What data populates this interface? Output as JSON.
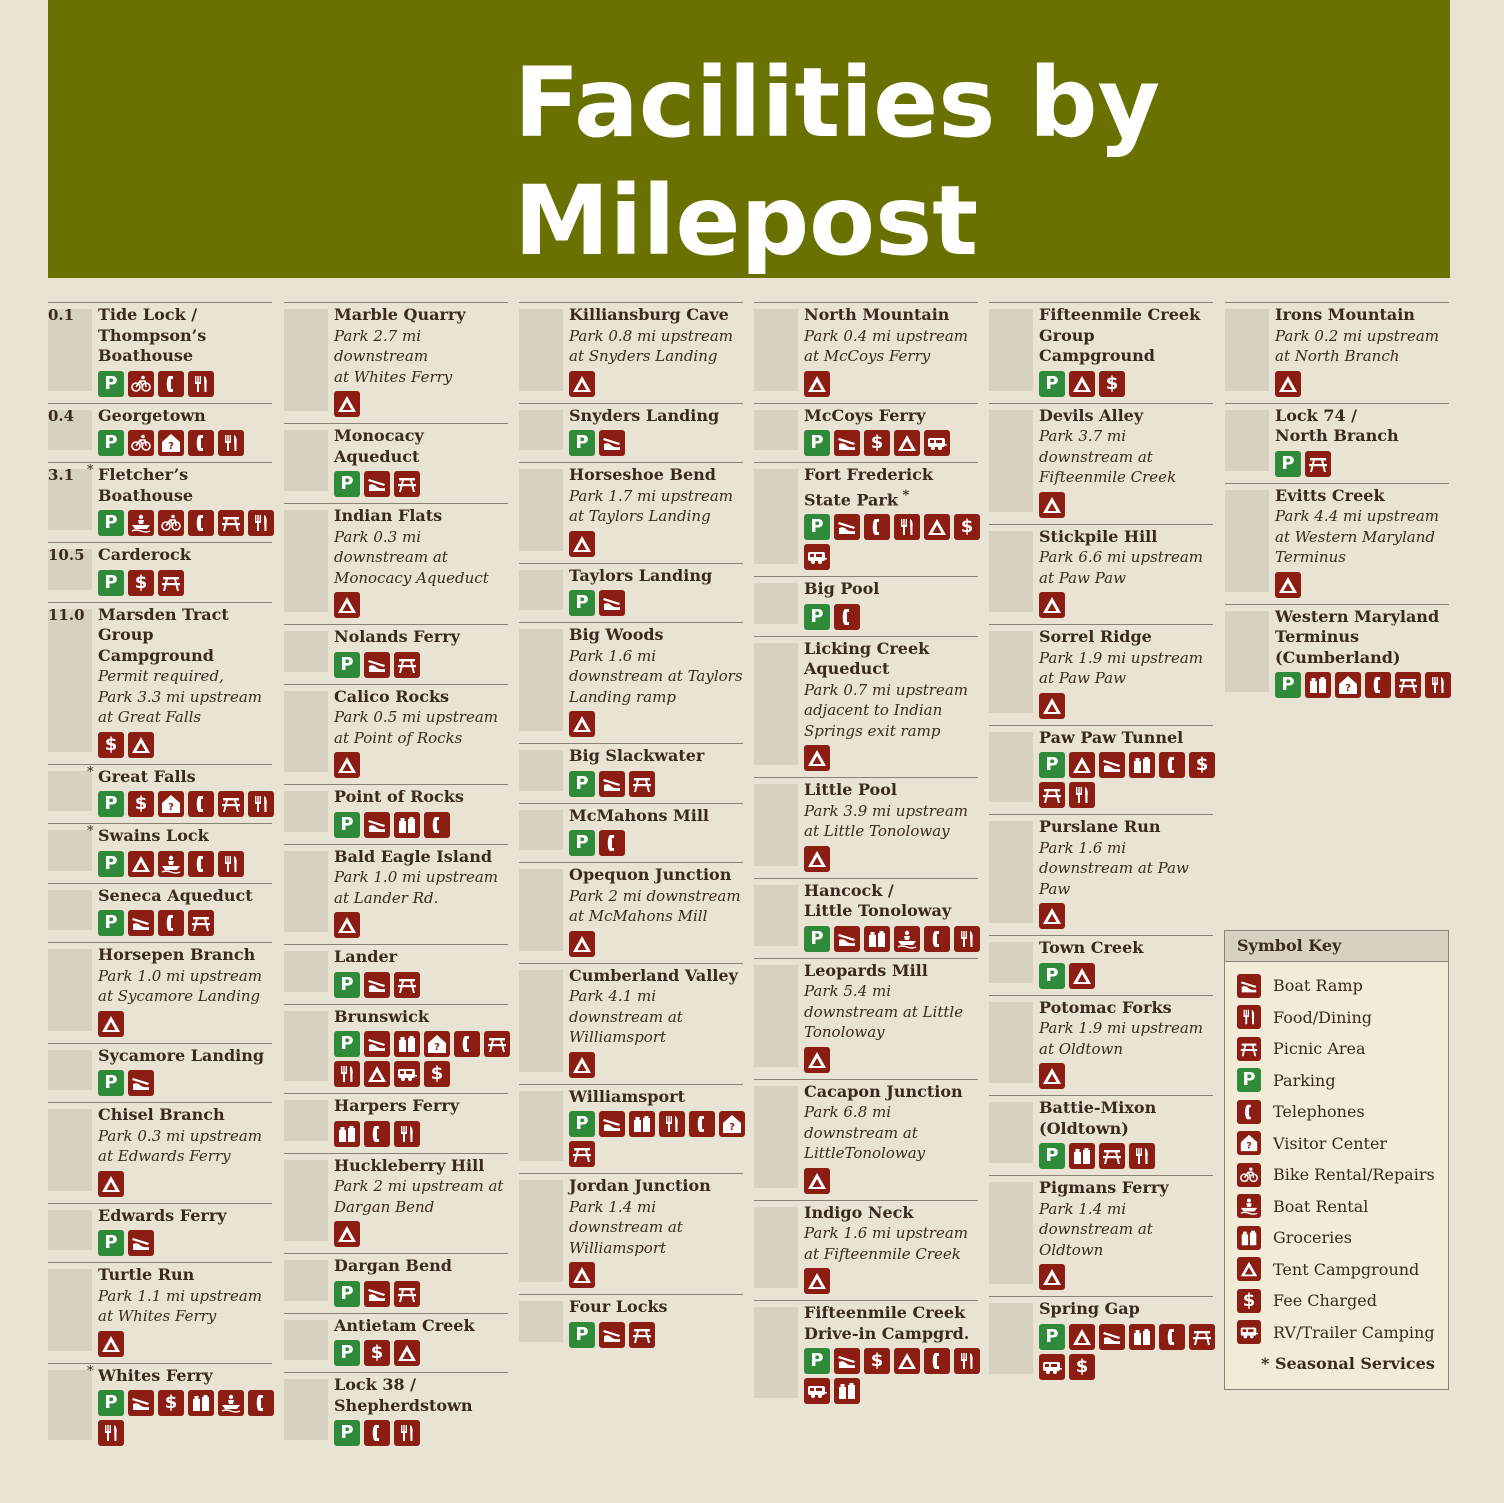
{
  "title": "Facilities by Milepost",
  "title_lines": [
    "Facilities by",
    "Milepost"
  ],
  "colors": {
    "banner": "#697100",
    "background": "#e8e3d3",
    "icon_brown": "#8b1d12",
    "icon_green": "#2f8a3a"
  },
  "columns": [
    [
      {
        "mile": "0.1",
        "name": "Tide Lock /\nThompson’s\nBoathouse",
        "icons": [
          "parking",
          "bike-rental",
          "telephone",
          "food"
        ]
      },
      {
        "mile": "0.4",
        "name": "Georgetown",
        "icons": [
          "parking",
          "bike-rental",
          "visitor-center",
          "telephone",
          "food"
        ]
      },
      {
        "mile": "3.1",
        "seasonal": true,
        "name": "Fletcher’s Boathouse",
        "icons": [
          "parking",
          "boat-rental",
          "bike-rental",
          "telephone",
          "picnic",
          "food"
        ]
      },
      {
        "mile": "10.5",
        "name": "Carderock",
        "icons": [
          "parking",
          "fee",
          "picnic"
        ]
      },
      {
        "mile": "11.0",
        "name": "Marsden Tract\nGroup Campground",
        "note": "Permit required,\nPark 3.3 mi upstream\nat Great Falls",
        "icons": [
          "fee",
          "tent"
        ]
      },
      {
        "seasonal": true,
        "name": "Great Falls",
        "icons": [
          "parking",
          "fee",
          "visitor-center",
          "telephone",
          "picnic",
          "food"
        ]
      },
      {
        "seasonal": true,
        "name": "Swains Lock",
        "icons": [
          "parking",
          "tent",
          "boat-rental",
          "telephone",
          "food"
        ]
      },
      {
        "name": "Seneca Aqueduct",
        "icons": [
          "parking",
          "boat-ramp",
          "telephone",
          "picnic"
        ]
      },
      {
        "name": "Horsepen Branch",
        "note": "Park 1.0 mi upstream\nat Sycamore Landing",
        "icons": [
          "tent"
        ]
      },
      {
        "name": "Sycamore Landing",
        "icons": [
          "parking",
          "boat-ramp"
        ]
      },
      {
        "name": "Chisel Branch",
        "note": "Park 0.3 mi upstream\nat Edwards Ferry",
        "icons": [
          "tent"
        ]
      },
      {
        "name": "Edwards Ferry",
        "icons": [
          "parking",
          "boat-ramp"
        ]
      },
      {
        "name": "Turtle Run",
        "note": "Park 1.1 mi upstream\nat Whites Ferry",
        "icons": [
          "tent"
        ]
      },
      {
        "seasonal": true,
        "name": "Whites Ferry",
        "icons": [
          "parking",
          "boat-ramp",
          "fee",
          "groceries",
          "boat-rental",
          "telephone",
          "food"
        ]
      }
    ],
    [
      {
        "name": " Marble Quarry",
        "note": "Park 2.7 mi\ndownstream\nat Whites Ferry",
        "icons": [
          "tent"
        ]
      },
      {
        "name": "Monocacy Aqueduct",
        "icons": [
          "parking",
          "boat-ramp",
          "picnic"
        ]
      },
      {
        "name": "Indian Flats",
        "note": "Park 0.3 mi\ndownstream at\nMonocacy Aqueduct",
        "icons": [
          "tent"
        ]
      },
      {
        "name": "Nolands Ferry",
        "icons": [
          "parking",
          "boat-ramp",
          "picnic"
        ]
      },
      {
        "name": "Calico Rocks",
        "note": "Park 0.5 mi upstream\nat Point of Rocks",
        "icons": [
          "tent"
        ]
      },
      {
        "name": "Point of Rocks",
        "icons": [
          "parking",
          "boat-ramp",
          "groceries",
          "telephone"
        ]
      },
      {
        "name": "Bald Eagle Island",
        "note": "Park 1.0 mi upstream\nat Lander Rd.",
        "icons": [
          "tent"
        ]
      },
      {
        "name": "Lander",
        "icons": [
          "parking",
          "boat-ramp",
          "picnic"
        ]
      },
      {
        "name": "Brunswick",
        "icons": [
          "parking",
          "boat-ramp",
          "groceries",
          "visitor-center",
          "telephone",
          "picnic",
          "food",
          "tent",
          "rv",
          "fee"
        ]
      },
      {
        "name": "Harpers Ferry",
        "icons": [
          "groceries",
          "telephone",
          "food"
        ]
      },
      {
        "name": "Huckleberry Hill",
        "note": "Park 2 mi upstream at\nDargan Bend",
        "icons": [
          "tent"
        ]
      },
      {
        "name": "Dargan Bend",
        "icons": [
          "parking",
          "boat-ramp",
          "picnic"
        ]
      },
      {
        "name": "Antietam Creek",
        "icons": [
          "parking",
          "fee",
          "tent"
        ]
      },
      {
        "name": "Lock 38 /\nShepherdstown",
        "icons": [
          "parking",
          "telephone",
          "food"
        ]
      }
    ],
    [
      {
        "name": "Killiansburg Cave",
        "note": "Park 0.8 mi upstream\nat Snyders Landing",
        "icons": [
          "tent"
        ]
      },
      {
        "name": "Snyders Landing",
        "icons": [
          "parking",
          "boat-ramp"
        ]
      },
      {
        "name": "Horseshoe Bend",
        "note": "Park 1.7 mi upstream\nat Taylors Landing",
        "icons": [
          "tent"
        ]
      },
      {
        "name": "Taylors Landing",
        "icons": [
          "parking",
          "boat-ramp"
        ]
      },
      {
        "name": "Big Woods",
        "note": "Park 1.6 mi\ndownstream at Taylors\nLanding ramp",
        "icons": [
          "tent"
        ]
      },
      {
        "name": "Big Slackwater",
        "icons": [
          "parking",
          "boat-ramp",
          "picnic"
        ]
      },
      {
        "name": "McMahons Mill",
        "icons": [
          "parking",
          "telephone"
        ]
      },
      {
        "name": "Opequon Junction",
        "note": "Park 2 mi downstream\nat McMahons Mill",
        "icons": [
          "tent"
        ]
      },
      {
        "name": "Cumberland Valley",
        "note": "Park 4.1 mi\ndownstream at\nWilliamsport",
        "icons": [
          "tent"
        ]
      },
      {
        "name": "Williamsport",
        "icons": [
          "parking",
          "boat-ramp",
          "groceries",
          "food",
          "telephone",
          "visitor-center",
          "picnic"
        ]
      },
      {
        "name": "Jordan Junction",
        "note": "Park 1.4 mi\ndownstream at\nWilliamsport",
        "icons": [
          "tent"
        ]
      },
      {
        "name": "Four Locks",
        "icons": [
          "parking",
          "boat-ramp",
          "picnic"
        ]
      }
    ],
    [
      {
        "name": "North Mountain",
        "note": "Park 0.4 mi upstream\nat McCoys Ferry",
        "icons": [
          "tent"
        ]
      },
      {
        "name": "McCoys Ferry",
        "icons": [
          "parking",
          "boat-ramp",
          "fee",
          "tent",
          "rv"
        ]
      },
      {
        "name": "Fort Frederick\nState Park",
        "seasonal_inline": true,
        "icons": [
          "parking",
          "boat-ramp",
          "telephone",
          "food",
          "tent",
          "fee",
          "rv"
        ]
      },
      {
        "name": "Big Pool",
        "icons": [
          "parking",
          "telephone"
        ]
      },
      {
        "name": "Licking Creek\nAqueduct",
        "note": "Park 0.7 mi upstream\nadjacent to Indian\nSprings exit ramp",
        "icons": [
          "tent"
        ]
      },
      {
        "name": "Little Pool",
        "note": "Park 3.9 mi upstream\nat Little Tonoloway",
        "icons": [
          "tent"
        ]
      },
      {
        "name": "Hancock /\nLittle Tonoloway",
        "icons": [
          "parking",
          "boat-ramp",
          "groceries",
          "boat-rental",
          "telephone",
          "food"
        ]
      },
      {
        "name": "Leopards Mill",
        "note": "Park 5.4 mi\ndownstream at Little\nTonoloway",
        "icons": [
          "tent"
        ]
      },
      {
        "name": "Cacapon Junction",
        "note": "Park 6.8 mi\ndownstream at\nLittleTonoloway",
        "icons": [
          "tent"
        ]
      },
      {
        "name": "Indigo Neck",
        "note": "Park 1.6 mi upstream\nat Fifteenmile Creek",
        "icons": [
          "tent"
        ]
      },
      {
        "name": "Fifteenmile Creek\nDrive-in Campgrd.",
        "icons": [
          "parking",
          "boat-ramp",
          "fee",
          "tent",
          "telephone",
          "food",
          "rv",
          "groceries"
        ]
      }
    ],
    [
      {
        "name": "Fifteenmile Creek\nGroup Campground",
        "icons": [
          "parking",
          "tent",
          "fee"
        ]
      },
      {
        "name": "Devils Alley",
        "note": "Park 3.7 mi\ndownstream at\nFifteenmile Creek",
        "icons": [
          "tent"
        ]
      },
      {
        "name": "Stickpile Hill",
        "note": "Park 6.6 mi upstream\nat Paw Paw",
        "icons": [
          "tent"
        ]
      },
      {
        "name": "Sorrel Ridge",
        "note": "Park 1.9 mi upstream\nat Paw Paw",
        "icons": [
          "tent"
        ]
      },
      {
        "name": "Paw Paw Tunnel",
        "icons": [
          "parking",
          "tent",
          "boat-ramp",
          "groceries",
          "telephone",
          "fee",
          "picnic",
          "food"
        ]
      },
      {
        "name": "Purslane Run",
        "note": "Park 1.6 mi\ndownstream at Paw\nPaw",
        "icons": [
          "tent"
        ]
      },
      {
        "name": "Town Creek",
        "icons": [
          "parking",
          "tent"
        ]
      },
      {
        "name": "Potomac Forks",
        "note": "Park 1.9 mi upstream\nat Oldtown",
        "icons": [
          "tent"
        ]
      },
      {
        "name": "Battie-Mixon\n(Oldtown)",
        "icons": [
          "parking",
          "groceries",
          "picnic",
          "food"
        ]
      },
      {
        "name": "Pigmans Ferry",
        "note": "Park 1.4 mi\ndownstream at\nOldtown",
        "icons": [
          "tent"
        ]
      },
      {
        "name": "Spring Gap",
        "icons": [
          "parking",
          "tent",
          "boat-ramp",
          "groceries",
          "telephone",
          "picnic",
          "rv",
          "fee"
        ]
      }
    ],
    [
      {
        "name": "Irons Mountain",
        "note": "Park 0.2 mi upstream\nat North Branch",
        "icons": [
          "tent"
        ]
      },
      {
        "name": "Lock 74 /\nNorth Branch",
        "icons": [
          "parking",
          "picnic"
        ]
      },
      {
        "name": "Evitts Creek",
        "note": "Park 4.4 mi upstream\nat Western Maryland\nTerminus",
        "icons": [
          "tent"
        ]
      },
      {
        "name": "Western Maryland\nTerminus\n(Cumberland)",
        "icons": [
          "parking",
          "groceries",
          "visitor-center",
          "telephone",
          "picnic",
          "food"
        ]
      }
    ]
  ],
  "symbol_key": {
    "title": "Symbol Key",
    "items": [
      {
        "icon": "boat-ramp",
        "label": "Boat Ramp"
      },
      {
        "icon": "food",
        "label": "Food/Dining"
      },
      {
        "icon": "picnic",
        "label": "Picnic Area"
      },
      {
        "icon": "parking",
        "label": "Parking"
      },
      {
        "icon": "telephone",
        "label": "Telephones"
      },
      {
        "icon": "visitor-center",
        "label": "Visitor Center"
      },
      {
        "icon": "bike-rental",
        "label": "Bike Rental/Repairs"
      },
      {
        "icon": "boat-rental",
        "label": "Boat Rental"
      },
      {
        "icon": "groceries",
        "label": "Groceries"
      },
      {
        "icon": "tent",
        "label": "Tent Campground"
      },
      {
        "icon": "fee",
        "label": "Fee Charged"
      },
      {
        "icon": "rv",
        "label": "RV/Trailer Camping"
      }
    ],
    "footnote": "* Seasonal Services"
  }
}
